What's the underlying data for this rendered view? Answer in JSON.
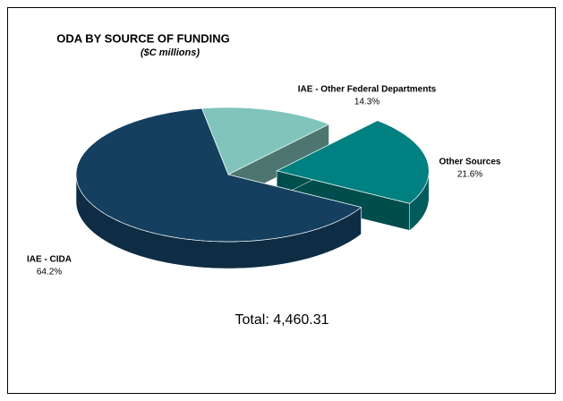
{
  "chart_data": {
    "type": "pie3d",
    "title": "ODA BY SOURCE OF FUNDING",
    "subtitle": "($C millions)",
    "annotation": "Total: 4,460.31",
    "categories": [
      "IAE - CIDA",
      "Other Sources",
      "IAE - Other Federal Departments"
    ],
    "values": [
      64.2,
      21.6,
      14.3
    ],
    "value_labels": [
      "64.2%",
      "21.6%",
      "14.3%"
    ],
    "colors": [
      "#143f5f",
      "#008080",
      "#80c4bc"
    ],
    "explode": [
      false,
      true,
      false
    ]
  }
}
